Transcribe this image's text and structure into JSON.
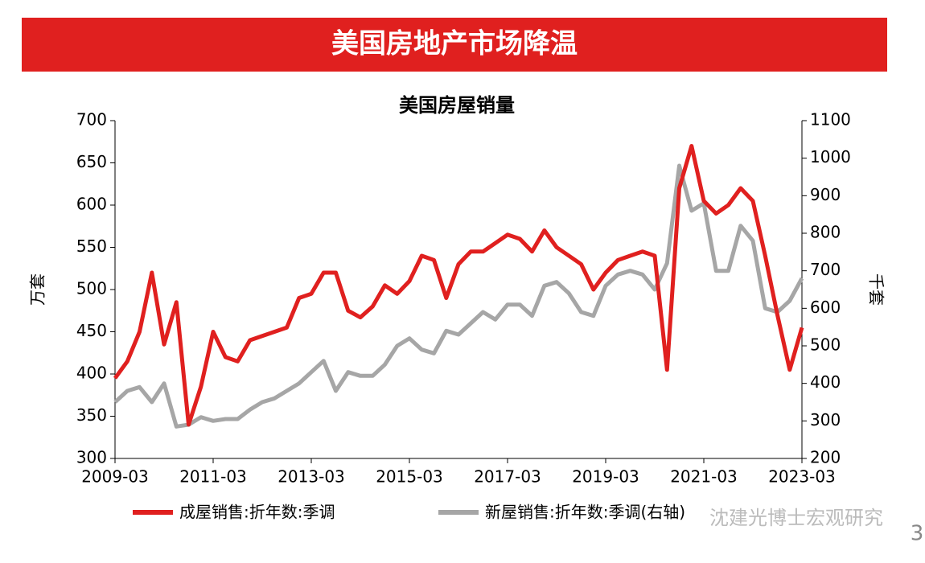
{
  "header": {
    "title": "美国房地产市场降温"
  },
  "chart_data": {
    "type": "line",
    "title": "美国房屋销量",
    "y_label": "万套",
    "y2_label": "千套",
    "x": [
      "2009-03",
      "2009-06",
      "2009-09",
      "2009-12",
      "2010-03",
      "2010-06",
      "2010-09",
      "2010-12",
      "2011-03",
      "2011-06",
      "2011-09",
      "2011-12",
      "2012-03",
      "2012-06",
      "2012-09",
      "2012-12",
      "2013-03",
      "2013-06",
      "2013-09",
      "2013-12",
      "2014-03",
      "2014-06",
      "2014-09",
      "2014-12",
      "2015-03",
      "2015-06",
      "2015-09",
      "2015-12",
      "2016-03",
      "2016-06",
      "2016-09",
      "2016-12",
      "2017-03",
      "2017-06",
      "2017-09",
      "2017-12",
      "2018-03",
      "2018-06",
      "2018-09",
      "2018-12",
      "2019-03",
      "2019-06",
      "2019-09",
      "2019-12",
      "2020-03",
      "2020-06",
      "2020-09",
      "2020-12",
      "2021-03",
      "2021-06",
      "2021-09",
      "2021-12",
      "2022-03",
      "2022-06",
      "2022-09",
      "2022-12",
      "2023-03"
    ],
    "series": [
      {
        "name": "成屋销售:折年数:季调",
        "color": "#e0201f",
        "values": [
          395,
          415,
          450,
          520,
          435,
          485,
          340,
          385,
          450,
          420,
          415,
          440,
          445,
          450,
          455,
          490,
          495,
          520,
          520,
          475,
          467,
          480,
          505,
          495,
          510,
          540,
          535,
          490,
          530,
          545,
          545,
          555,
          565,
          560,
          545,
          570,
          550,
          540,
          530,
          500,
          520,
          535,
          540,
          545,
          540,
          405,
          620,
          670,
          605,
          590,
          600,
          620,
          605,
          540,
          470,
          405,
          455
        ]
      },
      {
        "name": "新屋销售:折年数:季调(右轴)",
        "color": "#a6a6a6",
        "axis": "y2",
        "values": [
          350,
          380,
          390,
          350,
          400,
          285,
          290,
          310,
          300,
          305,
          305,
          330,
          350,
          360,
          380,
          400,
          430,
          460,
          380,
          430,
          420,
          420,
          450,
          500,
          520,
          490,
          480,
          540,
          530,
          560,
          590,
          570,
          610,
          610,
          580,
          660,
          670,
          640,
          590,
          580,
          660,
          690,
          700,
          690,
          650,
          720,
          980,
          860,
          880,
          700,
          700,
          820,
          780,
          600,
          590,
          620,
          680
        ]
      }
    ],
    "ylim": [
      300,
      700
    ],
    "yticks": [
      300,
      350,
      400,
      450,
      500,
      550,
      600,
      650,
      700
    ],
    "y2lim": [
      200,
      1100
    ],
    "y2ticks": [
      200,
      300,
      400,
      500,
      600,
      700,
      800,
      900,
      1000,
      1100
    ],
    "xticks": [
      "2009-03",
      "2011-03",
      "2013-03",
      "2015-03",
      "2017-03",
      "2019-03",
      "2021-03",
      "2023-03"
    ]
  },
  "footer": {
    "watermark": "沈建光博士宏观研究",
    "page": "3"
  }
}
